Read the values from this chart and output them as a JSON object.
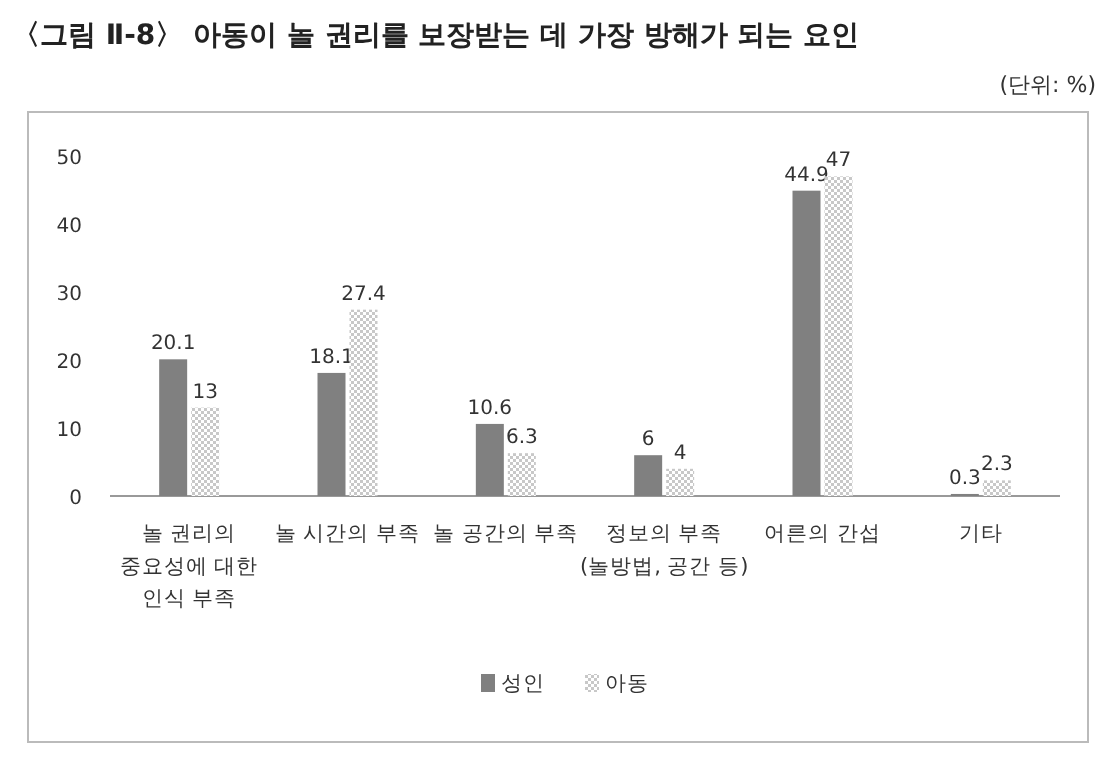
{
  "chart_data": {
    "type": "bar",
    "title": "〈그림 Ⅱ-8〉 아동이 놀 권리를 보장받는 데 가장 방해가 되는 요인",
    "annotations": [
      "(단위: %)"
    ],
    "categories": [
      "놀 권리의\n중요성에 대한\n인식 부족",
      "놀 시간의 부족",
      "놀 공간의 부족",
      "정보의 부족\n(놀방법, 공간 등)",
      "어른의 간섭",
      "기타"
    ],
    "series": [
      {
        "name": "성인",
        "color": "#808080",
        "values": [
          20.1,
          18.1,
          10.6,
          6,
          44.9,
          0.3
        ]
      },
      {
        "name": "아동",
        "color": "#c8c8c8",
        "values": [
          13,
          27.4,
          6.3,
          4,
          47,
          2.3
        ]
      }
    ],
    "ylim": [
      0,
      50
    ],
    "yticks": [
      0,
      10,
      20,
      30,
      40,
      50
    ],
    "grid": false,
    "data_labels": true,
    "legend": "bottom"
  }
}
